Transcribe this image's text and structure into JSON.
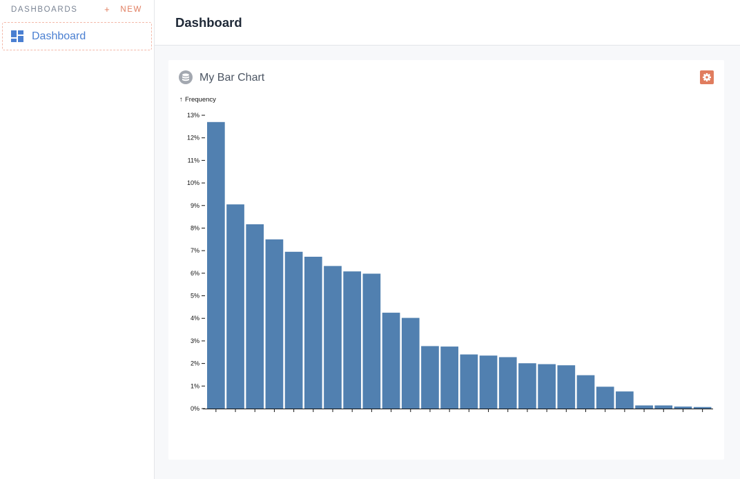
{
  "sidebar": {
    "title": "DASHBOARDS",
    "new_label": "NEW",
    "new_icon": "plus-icon",
    "items": [
      {
        "label": "Dashboard",
        "icon": "dashboard-grid-icon",
        "selected": true
      }
    ]
  },
  "header": {
    "title": "Dashboard"
  },
  "card": {
    "title": "My Bar Chart",
    "icon": "database-icon",
    "settings_icon": "gear-icon",
    "accent_color": "#e07c5e"
  },
  "chart_data": {
    "type": "bar",
    "ylabel": "Frequency",
    "ylim": [
      0,
      13
    ],
    "yticks": [
      "0%",
      "1%",
      "2%",
      "3%",
      "4%",
      "5%",
      "6%",
      "7%",
      "8%",
      "9%",
      "10%",
      "11%",
      "12%",
      "13%"
    ],
    "values": [
      12.7,
      9.05,
      8.17,
      7.5,
      6.95,
      6.73,
      6.32,
      6.08,
      5.98,
      4.25,
      4.02,
      2.77,
      2.75,
      2.4,
      2.35,
      2.28,
      2.01,
      1.97,
      1.92,
      1.48,
      0.97,
      0.76,
      0.14,
      0.14,
      0.09,
      0.07
    ],
    "bar_color": "#5180b0",
    "grid": false
  }
}
